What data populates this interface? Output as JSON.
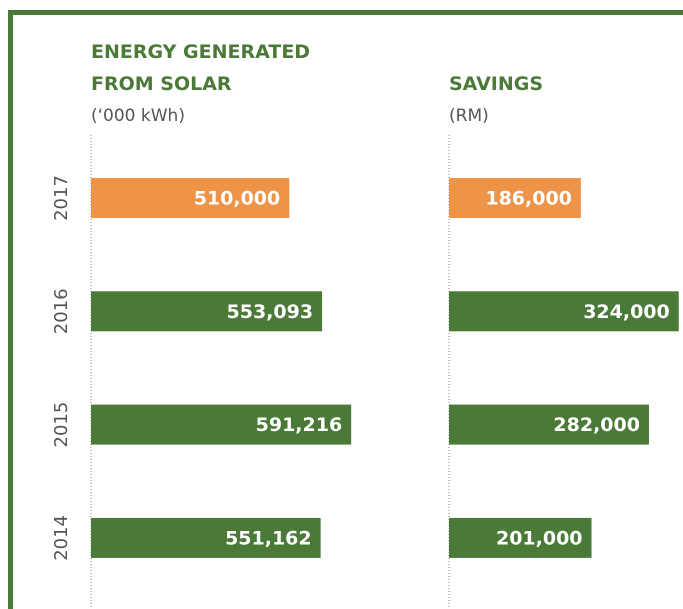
{
  "chart_data": {
    "type": "bar",
    "orientation": "horizontal",
    "categories": [
      "2017",
      "2016",
      "2015",
      "2014"
    ],
    "series": [
      {
        "name": "ENERGY GENERATED FROM SOLAR",
        "unit": "(‘000 kWh)",
        "values": [
          510000,
          553093,
          591216,
          551162
        ],
        "value_labels": [
          "510,000",
          "553,093",
          "591,216",
          "551,162"
        ],
        "colors": [
          "#ee9449",
          "#4b7a38",
          "#4b7a38",
          "#4b7a38"
        ],
        "xlim": [
          250000,
          650000
        ]
      },
      {
        "name": "SAVINGS",
        "unit": "(RM)",
        "values": [
          186000,
          324000,
          282000,
          201000
        ],
        "value_labels": [
          "186,000",
          "324,000",
          "282,000",
          "201,000"
        ],
        "colors": [
          "#ee9449",
          "#4b7a38",
          "#4b7a38",
          "#4b7a38"
        ],
        "xlim": [
          0,
          330000
        ]
      }
    ]
  }
}
